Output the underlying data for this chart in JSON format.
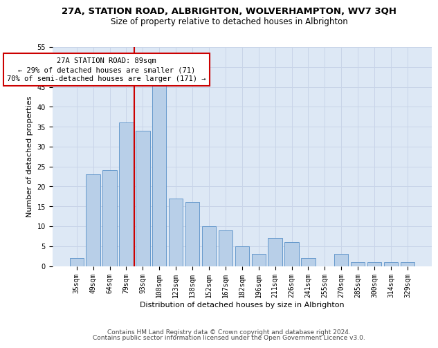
{
  "title": "27A, STATION ROAD, ALBRIGHTON, WOLVERHAMPTON, WV7 3QH",
  "subtitle": "Size of property relative to detached houses in Albrighton",
  "xlabel": "Distribution of detached houses by size in Albrighton",
  "ylabel": "Number of detached properties",
  "categories": [
    "35sqm",
    "49sqm",
    "64sqm",
    "79sqm",
    "93sqm",
    "108sqm",
    "123sqm",
    "138sqm",
    "152sqm",
    "167sqm",
    "182sqm",
    "196sqm",
    "211sqm",
    "226sqm",
    "241sqm",
    "255sqm",
    "270sqm",
    "285sqm",
    "300sqm",
    "314sqm",
    "329sqm"
  ],
  "values": [
    2,
    23,
    24,
    36,
    34,
    46,
    17,
    16,
    10,
    9,
    5,
    3,
    7,
    6,
    2,
    0,
    3,
    1,
    1,
    1,
    1
  ],
  "bar_color": "#b8cfe8",
  "bar_edge_color": "#6699cc",
  "grid_color": "#c8d4e8",
  "bg_color": "#dde8f5",
  "red_line_color": "#cc0000",
  "red_line_x": 3.5,
  "annotation_text": "27A STATION ROAD: 89sqm\n← 29% of detached houses are smaller (71)\n70% of semi-detached houses are larger (171) →",
  "annotation_box_color": "#ffffff",
  "annotation_box_edge": "#cc0000",
  "ylim": [
    0,
    55
  ],
  "yticks": [
    0,
    5,
    10,
    15,
    20,
    25,
    30,
    35,
    40,
    45,
    50,
    55
  ],
  "footnote1": "Contains HM Land Registry data © Crown copyright and database right 2024.",
  "footnote2": "Contains public sector information licensed under the Open Government Licence v3.0.",
  "title_fontsize": 9.5,
  "subtitle_fontsize": 8.5,
  "xlabel_fontsize": 8,
  "ylabel_fontsize": 8,
  "tick_fontsize": 7,
  "annotation_fontsize": 7.5,
  "footnote_fontsize": 6.5
}
